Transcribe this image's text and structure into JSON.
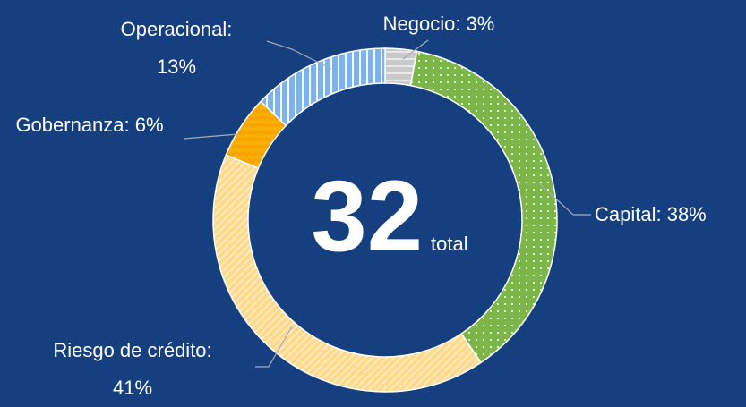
{
  "chart_data": {
    "type": "donut",
    "values": [
      3,
      38,
      41,
      6,
      13
    ],
    "value_labels": [
      "Negocio: 3%",
      "Capital: 38%",
      "Riesgo de crédito: 41%",
      "Gobernanza: 6%",
      "Operacional: 13%"
    ],
    "colors": [
      "#c9c9c9",
      "#7cb548",
      "#ffd98c",
      "#f5b300",
      "#7eb2ee"
    ],
    "center_value": 32,
    "center_label": "total"
  }
}
